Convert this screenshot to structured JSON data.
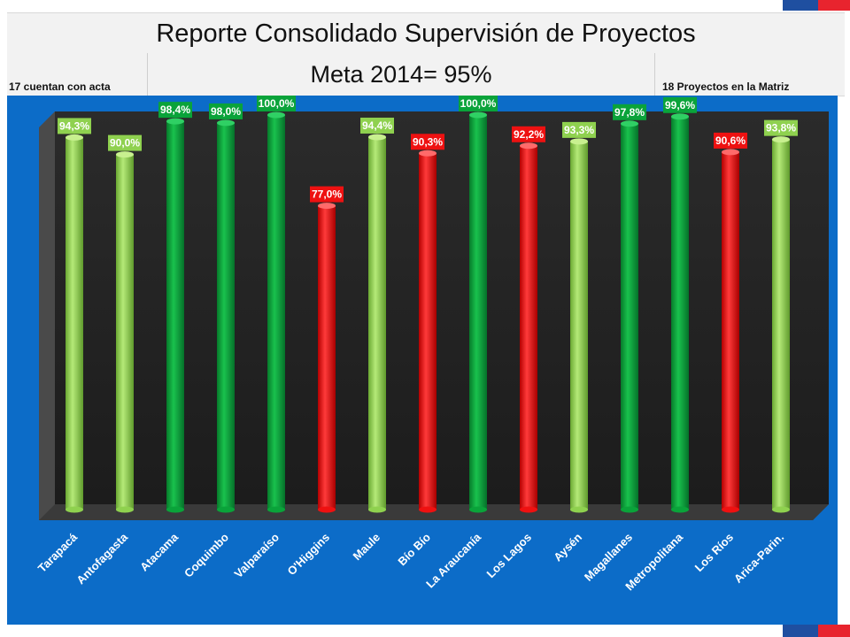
{
  "header": {
    "title": "Reporte Consolidado Supervisión de Proyectos",
    "left_note": "17 cuentan con acta",
    "meta": "Meta 2014= 95%",
    "right_note": "18 Proyectos en la Matriz"
  },
  "colors": {
    "above_goal": "#0aa33a",
    "near_goal": "#8fd14f",
    "below_goal": "#ee1111",
    "background": "#0c6cc8",
    "floor": "#262626"
  },
  "chart_data": {
    "type": "bar",
    "title": "Reporte Consolidado Supervisión de Proyectos",
    "xlabel": "",
    "ylabel": "",
    "ylim": [
      0,
      100
    ],
    "grid": false,
    "legend": "none",
    "style": "3d-cylinder",
    "categories": [
      "Tarapacá",
      "Antofagasta",
      "Atacama",
      "Coquimbo",
      "Valparaíso",
      "O'Higgins",
      "Maule",
      "Bío Bío",
      "La Araucanía",
      "Los Lagos",
      "Aysén",
      "Magallanes",
      "Metropolitana",
      "Los Ríos",
      "Arica-Parin."
    ],
    "values": [
      94.3,
      90.0,
      98.4,
      98.0,
      100.0,
      77.0,
      94.4,
      90.3,
      100.0,
      92.2,
      93.3,
      97.8,
      99.6,
      90.6,
      93.8
    ],
    "value_labels": [
      "94,3%",
      "90,0%",
      "98,4%",
      "98,0%",
      "100,0%",
      "77,0%",
      "94,4%",
      "90,3%",
      "100,0%",
      "92,2%",
      "93,3%",
      "97,8%",
      "99,6%",
      "90,6%",
      "93,8%"
    ],
    "bar_colors": [
      "near",
      "near",
      "above",
      "above",
      "above",
      "below",
      "near",
      "below",
      "above",
      "below",
      "near",
      "above",
      "above",
      "below",
      "near"
    ]
  }
}
